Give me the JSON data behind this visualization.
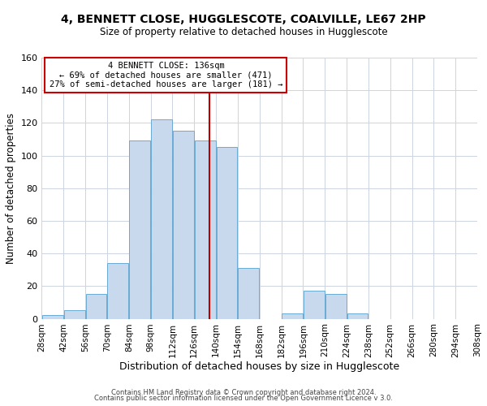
{
  "title": "4, BENNETT CLOSE, HUGGLESCOTE, COALVILLE, LE67 2HP",
  "subtitle": "Size of property relative to detached houses in Hugglescote",
  "xlabel": "Distribution of detached houses by size in Hugglescote",
  "ylabel": "Number of detached properties",
  "bin_edges": [
    28,
    42,
    56,
    70,
    84,
    98,
    112,
    126,
    140,
    154,
    168,
    182,
    196,
    210,
    224,
    238,
    252,
    266,
    280,
    294,
    308
  ],
  "bar_heights": [
    2,
    5,
    15,
    34,
    109,
    122,
    115,
    109,
    105,
    31,
    0,
    3,
    17,
    15,
    3,
    0,
    0,
    0,
    0,
    0
  ],
  "bar_color": "#c8d9ee",
  "bar_edge_color": "#6aaad4",
  "vline_x": 136,
  "vline_color": "#bb0000",
  "ylim": [
    0,
    160
  ],
  "yticks": [
    0,
    20,
    40,
    60,
    80,
    100,
    120,
    140,
    160
  ],
  "annotation_title": "4 BENNETT CLOSE: 136sqm",
  "annotation_line1": "← 69% of detached houses are smaller (471)",
  "annotation_line2": "27% of semi-detached houses are larger (181) →",
  "annotation_box_color": "#ffffff",
  "annotation_box_edge_color": "#cc0000",
  "footer_line1": "Contains HM Land Registry data © Crown copyright and database right 2024.",
  "footer_line2": "Contains public sector information licensed under the Open Government Licence v 3.0.",
  "background_color": "#ffffff",
  "grid_color": "#ccd5e0"
}
